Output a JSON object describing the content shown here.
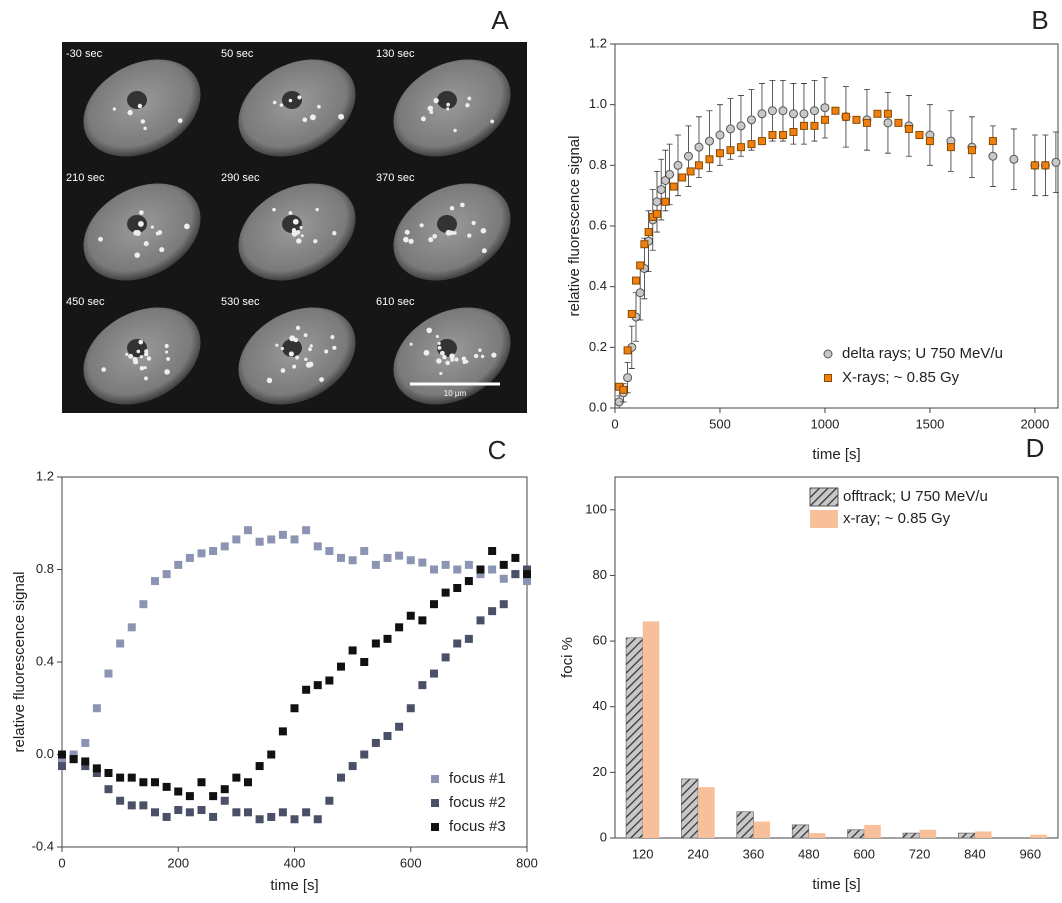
{
  "image_panel": {
    "label": "A",
    "frames": [
      "-30 sec",
      "50 sec",
      "130 sec",
      "210 sec",
      "290 sec",
      "370 sec",
      "450 sec",
      "530 sec",
      "610 sec"
    ],
    "scale_bar": "10 μm"
  },
  "chart_data": [
    {
      "type": "scatter",
      "label": "B",
      "xlabel": "time [s]",
      "ylabel": "relative fluorescence signal",
      "xlim": [
        0,
        2110
      ],
      "xticks": [
        0,
        500,
        1000,
        1500,
        2000
      ],
      "ylim": [
        0,
        1.2
      ],
      "yticks": [
        {
          "value": 0,
          "label": "0.0"
        },
        0.2,
        0.4,
        0.6,
        0.8,
        {
          "value": 1,
          "label": "1.0"
        },
        1.2
      ],
      "legend": "lower right",
      "series": [
        {
          "name": "delta rays; U 750 MeV/u",
          "color": "#c8c8c8",
          "marker": "circle",
          "x": [
            20,
            40,
            60,
            80,
            100,
            120,
            140,
            160,
            180,
            200,
            220,
            240,
            260,
            300,
            350,
            400,
            450,
            500,
            550,
            600,
            650,
            700,
            750,
            800,
            850,
            900,
            950,
            1000,
            1100,
            1200,
            1300,
            1400,
            1500,
            1600,
            1700,
            1800,
            1900,
            2000,
            2050,
            2100
          ],
          "values": [
            0.02,
            0.05,
            0.1,
            0.2,
            0.3,
            0.38,
            0.46,
            0.55,
            0.62,
            0.68,
            0.72,
            0.75,
            0.77,
            0.8,
            0.83,
            0.86,
            0.88,
            0.9,
            0.92,
            0.93,
            0.95,
            0.97,
            0.98,
            0.98,
            0.97,
            0.97,
            0.98,
            0.99,
            0.96,
            0.95,
            0.94,
            0.93,
            0.9,
            0.88,
            0.86,
            0.83,
            0.82,
            0.8,
            0.8,
            0.81
          ],
          "errors": [
            0.02,
            0.03,
            0.05,
            0.07,
            0.08,
            0.09,
            0.1,
            0.1,
            0.1,
            0.1,
            0.1,
            0.1,
            0.1,
            0.1,
            0.1,
            0.1,
            0.1,
            0.1,
            0.1,
            0.1,
            0.1,
            0.1,
            0.1,
            0.1,
            0.1,
            0.1,
            0.1,
            0.1,
            0.1,
            0.1,
            0.1,
            0.1,
            0.1,
            0.1,
            0.1,
            0.1,
            0.1,
            0.1,
            0.1,
            0.1
          ]
        },
        {
          "name": "X-rays; ~ 0.85 Gy",
          "color": "#f07f10",
          "marker": "square",
          "x": [
            20,
            40,
            60,
            80,
            100,
            120,
            140,
            160,
            180,
            200,
            240,
            280,
            320,
            360,
            400,
            450,
            500,
            550,
            600,
            650,
            700,
            750,
            800,
            850,
            900,
            950,
            1000,
            1050,
            1100,
            1150,
            1200,
            1250,
            1300,
            1350,
            1400,
            1450,
            1500,
            1600,
            1700,
            1800,
            2000,
            2050
          ],
          "values": [
            0.07,
            0.06,
            0.19,
            0.31,
            0.42,
            0.47,
            0.54,
            0.58,
            0.63,
            0.64,
            0.68,
            0.73,
            0.76,
            0.78,
            0.8,
            0.82,
            0.84,
            0.85,
            0.86,
            0.87,
            0.88,
            0.9,
            0.9,
            0.91,
            0.93,
            0.93,
            0.95,
            0.98,
            0.96,
            0.95,
            0.94,
            0.97,
            0.97,
            0.94,
            0.92,
            0.9,
            0.88,
            0.86,
            0.85,
            0.88,
            0.8,
            0.8
          ]
        }
      ]
    },
    {
      "type": "scatter",
      "label": "C",
      "xlabel": "time [s]",
      "ylabel": "relative fluorescence signal",
      "xlim": [
        0,
        800
      ],
      "xticks": [
        0,
        200,
        400,
        600,
        800
      ],
      "ylim": [
        -0.4,
        1.2
      ],
      "yticks": [
        -0.4,
        {
          "value": 0,
          "label": "0.0"
        },
        0.4,
        0.8,
        1.2
      ],
      "legend": "lower right",
      "x": [
        0,
        20,
        40,
        60,
        80,
        100,
        120,
        140,
        160,
        180,
        200,
        220,
        240,
        260,
        280,
        300,
        320,
        340,
        360,
        380,
        400,
        420,
        440,
        460,
        480,
        500,
        520,
        540,
        560,
        580,
        600,
        620,
        640,
        660,
        680,
        700,
        720,
        740,
        760,
        780,
        800
      ],
      "series": [
        {
          "name": "focus #1",
          "color": "#8b95b3",
          "marker": "square",
          "values": [
            -0.02,
            0.0,
            0.05,
            0.2,
            0.35,
            0.48,
            0.55,
            0.65,
            0.75,
            0.78,
            0.82,
            0.85,
            0.87,
            0.88,
            0.9,
            0.93,
            0.97,
            0.92,
            0.93,
            0.95,
            0.93,
            0.97,
            0.9,
            0.88,
            0.85,
            0.84,
            0.88,
            0.82,
            0.85,
            0.86,
            0.84,
            0.83,
            0.8,
            0.82,
            0.8,
            0.82,
            0.78,
            0.8,
            0.76,
            0.78,
            0.75
          ]
        },
        {
          "name": "focus #2",
          "color": "#4a5068",
          "marker": "square",
          "values": [
            -0.05,
            -0.02,
            -0.05,
            -0.08,
            -0.15,
            -0.2,
            -0.22,
            -0.22,
            -0.25,
            -0.27,
            -0.24,
            -0.25,
            -0.24,
            -0.27,
            -0.2,
            -0.25,
            -0.25,
            -0.28,
            -0.27,
            -0.25,
            -0.28,
            -0.25,
            -0.28,
            -0.2,
            -0.1,
            -0.05,
            0.0,
            0.05,
            0.08,
            0.12,
            0.2,
            0.3,
            0.35,
            0.42,
            0.48,
            0.5,
            0.58,
            0.62,
            0.65,
            0.78,
            0.8
          ]
        },
        {
          "name": "focus #3",
          "color": "#111111",
          "marker": "square",
          "values": [
            0.0,
            -0.02,
            -0.03,
            -0.06,
            -0.08,
            -0.1,
            -0.1,
            -0.12,
            -0.12,
            -0.14,
            -0.16,
            -0.18,
            -0.12,
            -0.18,
            -0.15,
            -0.1,
            -0.12,
            -0.05,
            0.0,
            0.1,
            0.2,
            0.28,
            0.3,
            0.32,
            0.38,
            0.45,
            0.4,
            0.48,
            0.5,
            0.55,
            0.6,
            0.58,
            0.65,
            0.7,
            0.72,
            0.75,
            0.8,
            0.88,
            0.82,
            0.85,
            0.78
          ]
        }
      ]
    },
    {
      "type": "bar",
      "label": "D",
      "xlabel": "time  [s]",
      "ylabel": "foci %",
      "categories": [
        "120",
        "240",
        "360",
        "480",
        "600",
        "720",
        "840",
        "960"
      ],
      "ylim": [
        0,
        110
      ],
      "yticks": [
        0,
        20,
        40,
        60,
        80,
        100
      ],
      "legend": "upper right",
      "series": [
        {
          "name": "offtrack; U 750 MeV/u",
          "color": "#c8c8c8",
          "hatch": true,
          "values": [
            61,
            18,
            8,
            4,
            2.5,
            1.5,
            1.5,
            0
          ]
        },
        {
          "name": "x-ray; ~ 0.85 Gy",
          "color": "#f7bf9a",
          "hatch": false,
          "values": [
            66,
            15.5,
            5,
            1.5,
            4,
            2.5,
            2,
            1
          ]
        }
      ]
    }
  ]
}
